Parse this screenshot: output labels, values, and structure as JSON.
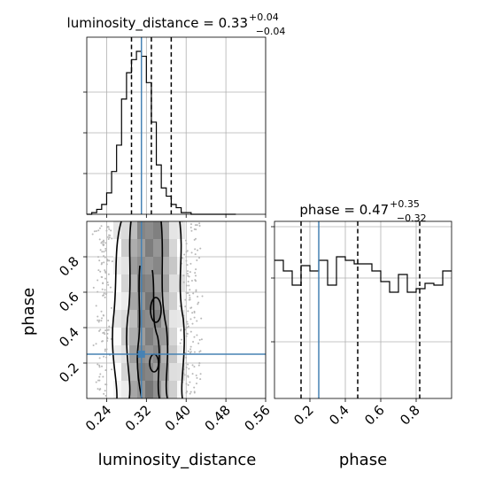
{
  "chart_data": [
    {
      "panel": "luminosity_distance marginal",
      "type": "histogram",
      "title_parts": {
        "prefix": "luminosity_distance = 0.33",
        "sup": "+0.04",
        "sub": "−0.04"
      },
      "x": [
        0.2,
        0.21,
        0.22,
        0.23,
        0.24,
        0.25,
        0.26,
        0.27,
        0.28,
        0.29,
        0.3,
        0.31,
        0.32,
        0.33,
        0.34,
        0.35,
        0.36,
        0.37,
        0.38,
        0.39,
        0.4,
        0.41,
        0.42,
        0.43,
        0.44,
        0.45,
        0.46,
        0.47,
        0.48,
        0.49,
        0.5
      ],
      "values": [
        0.0,
        0.01,
        0.03,
        0.06,
        0.13,
        0.26,
        0.42,
        0.7,
        0.86,
        0.94,
        0.99,
        0.96,
        0.8,
        0.56,
        0.3,
        0.16,
        0.11,
        0.06,
        0.04,
        0.01,
        0.01,
        0.0,
        0.0,
        0.0,
        0.0,
        0.0,
        0.0,
        0.0,
        0.0,
        0.0
      ],
      "quantiles": [
        0.29,
        0.33,
        0.37
      ],
      "truth": 0.31
    },
    {
      "panel": "phase marginal",
      "type": "histogram",
      "title_parts": {
        "prefix": "phase = 0.47",
        "sup": "+0.35",
        "sub": "−0.32"
      },
      "x": [
        0.0,
        0.05,
        0.1,
        0.15,
        0.2,
        0.25,
        0.3,
        0.35,
        0.4,
        0.45,
        0.5,
        0.55,
        0.6,
        0.65,
        0.7,
        0.75,
        0.8,
        0.85,
        0.9,
        0.95,
        1.0
      ],
      "values": [
        0.78,
        0.72,
        0.64,
        0.75,
        0.72,
        0.78,
        0.64,
        0.8,
        0.78,
        0.76,
        0.76,
        0.72,
        0.66,
        0.6,
        0.7,
        0.6,
        0.62,
        0.65,
        0.64,
        0.72
      ],
      "quantiles": [
        0.15,
        0.47,
        0.82
      ],
      "truth": 0.25
    },
    {
      "panel": "joint luminosity_distance vs phase",
      "type": "scatter",
      "xlabel": "luminosity_distance",
      "ylabel": "phase",
      "x_ticks": [
        "0.24",
        "0.32",
        "0.40",
        "0.48",
        "0.56"
      ],
      "y_ticks": [
        "0.2",
        "0.4",
        "0.6",
        "0.8"
      ],
      "x_range": [
        0.2,
        0.5
      ],
      "y_range": [
        0.0,
        1.0
      ],
      "truth": [
        0.31,
        0.25
      ]
    }
  ],
  "phase_x_ticks": [
    "0.2",
    "0.4",
    "0.6",
    "0.8"
  ],
  "phase_xlabel": "phase",
  "colors": {
    "truth": "#4682b4",
    "grid": "#b0b0b0"
  }
}
